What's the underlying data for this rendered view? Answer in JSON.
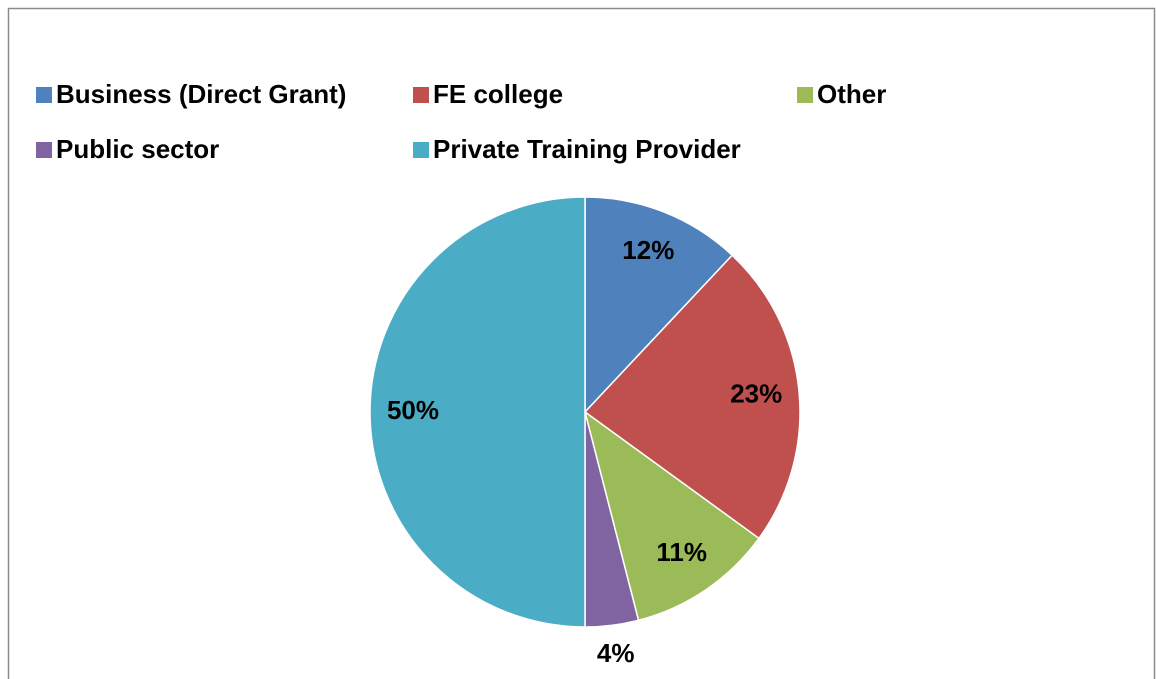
{
  "chart_data": {
    "type": "pie",
    "categories": [
      "Business (Direct Grant)",
      "FE college",
      "Other",
      "Public sector",
      "Private Training Provider"
    ],
    "values": [
      12,
      23,
      11,
      4,
      50
    ],
    "value_labels": [
      "12%",
      "23%",
      "11%",
      "4%",
      "50%"
    ],
    "colors": [
      "#4f81bd",
      "#c0504d",
      "#9bbb59",
      "#8064a2",
      "#4bacc6"
    ],
    "legend": "top"
  }
}
